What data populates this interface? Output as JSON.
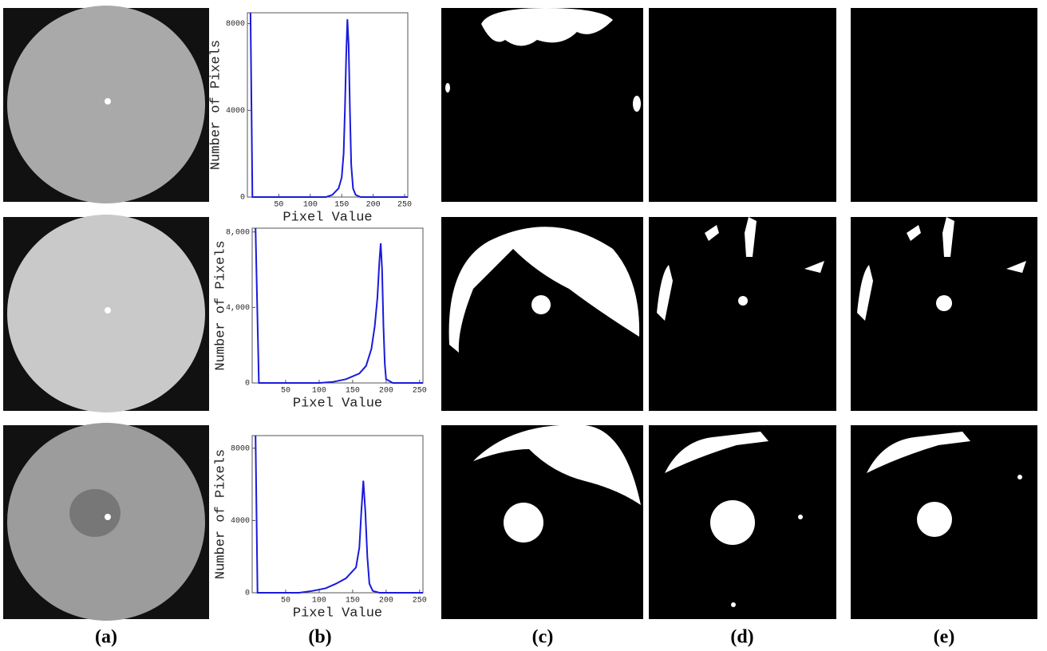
{
  "panel_labels": [
    "(a)",
    "(b)",
    "(c)",
    "(d)",
    "(e)"
  ],
  "chart_data": [
    {
      "type": "line",
      "x_label": "Pixel Value",
      "y_label": "Number of Pixels",
      "color": "#1a1adc",
      "x": [
        5,
        8,
        125,
        135,
        145,
        150,
        153,
        155,
        157,
        159,
        161,
        163,
        165,
        168,
        172,
        180,
        255
      ],
      "values": [
        8500,
        0,
        0,
        100,
        400,
        900,
        2000,
        4000,
        6500,
        8200,
        7000,
        4000,
        1500,
        400,
        100,
        0,
        0
      ],
      "xlim": [
        0,
        255
      ],
      "ylim": [
        0,
        8500
      ],
      "xticks": [
        50,
        100,
        150,
        200,
        250
      ],
      "yticks": [
        0,
        4000,
        8000
      ]
    },
    {
      "type": "line",
      "x_label": "Pixel Value",
      "y_label": "Number of Pixels",
      "color": "#1a1adc",
      "x": [
        5,
        10,
        100,
        120,
        140,
        160,
        170,
        178,
        183,
        187,
        190,
        192,
        194,
        196,
        198,
        200,
        210,
        255
      ],
      "values": [
        8200,
        0,
        0,
        50,
        200,
        500,
        900,
        1800,
        3000,
        4500,
        6500,
        7400,
        6000,
        3000,
        1000,
        200,
        0,
        0
      ],
      "xlim": [
        0,
        255
      ],
      "ylim": [
        0,
        8200
      ],
      "xticks": [
        50,
        100,
        150,
        200,
        250
      ],
      "yticks": [
        0,
        {
          "value": 4000,
          "label": "4,000"
        },
        {
          "value": 8000,
          "label": "8,000"
        }
      ]
    },
    {
      "type": "line",
      "x_label": "Pixel Value",
      "y_label": "Number of Pixels",
      "color": "#1a1adc",
      "x": [
        5,
        8,
        70,
        90,
        110,
        125,
        140,
        150,
        155,
        160,
        163,
        166,
        169,
        172,
        175,
        180,
        190,
        255
      ],
      "values": [
        8700,
        0,
        0,
        100,
        250,
        500,
        800,
        1200,
        1400,
        2500,
        4500,
        6200,
        4500,
        2000,
        500,
        100,
        0,
        0
      ],
      "xlim": [
        0,
        255
      ],
      "ylim": [
        0,
        8700
      ],
      "xticks": [
        50,
        100,
        150,
        200,
        250
      ],
      "yticks": [
        0,
        4000,
        8000
      ]
    }
  ]
}
